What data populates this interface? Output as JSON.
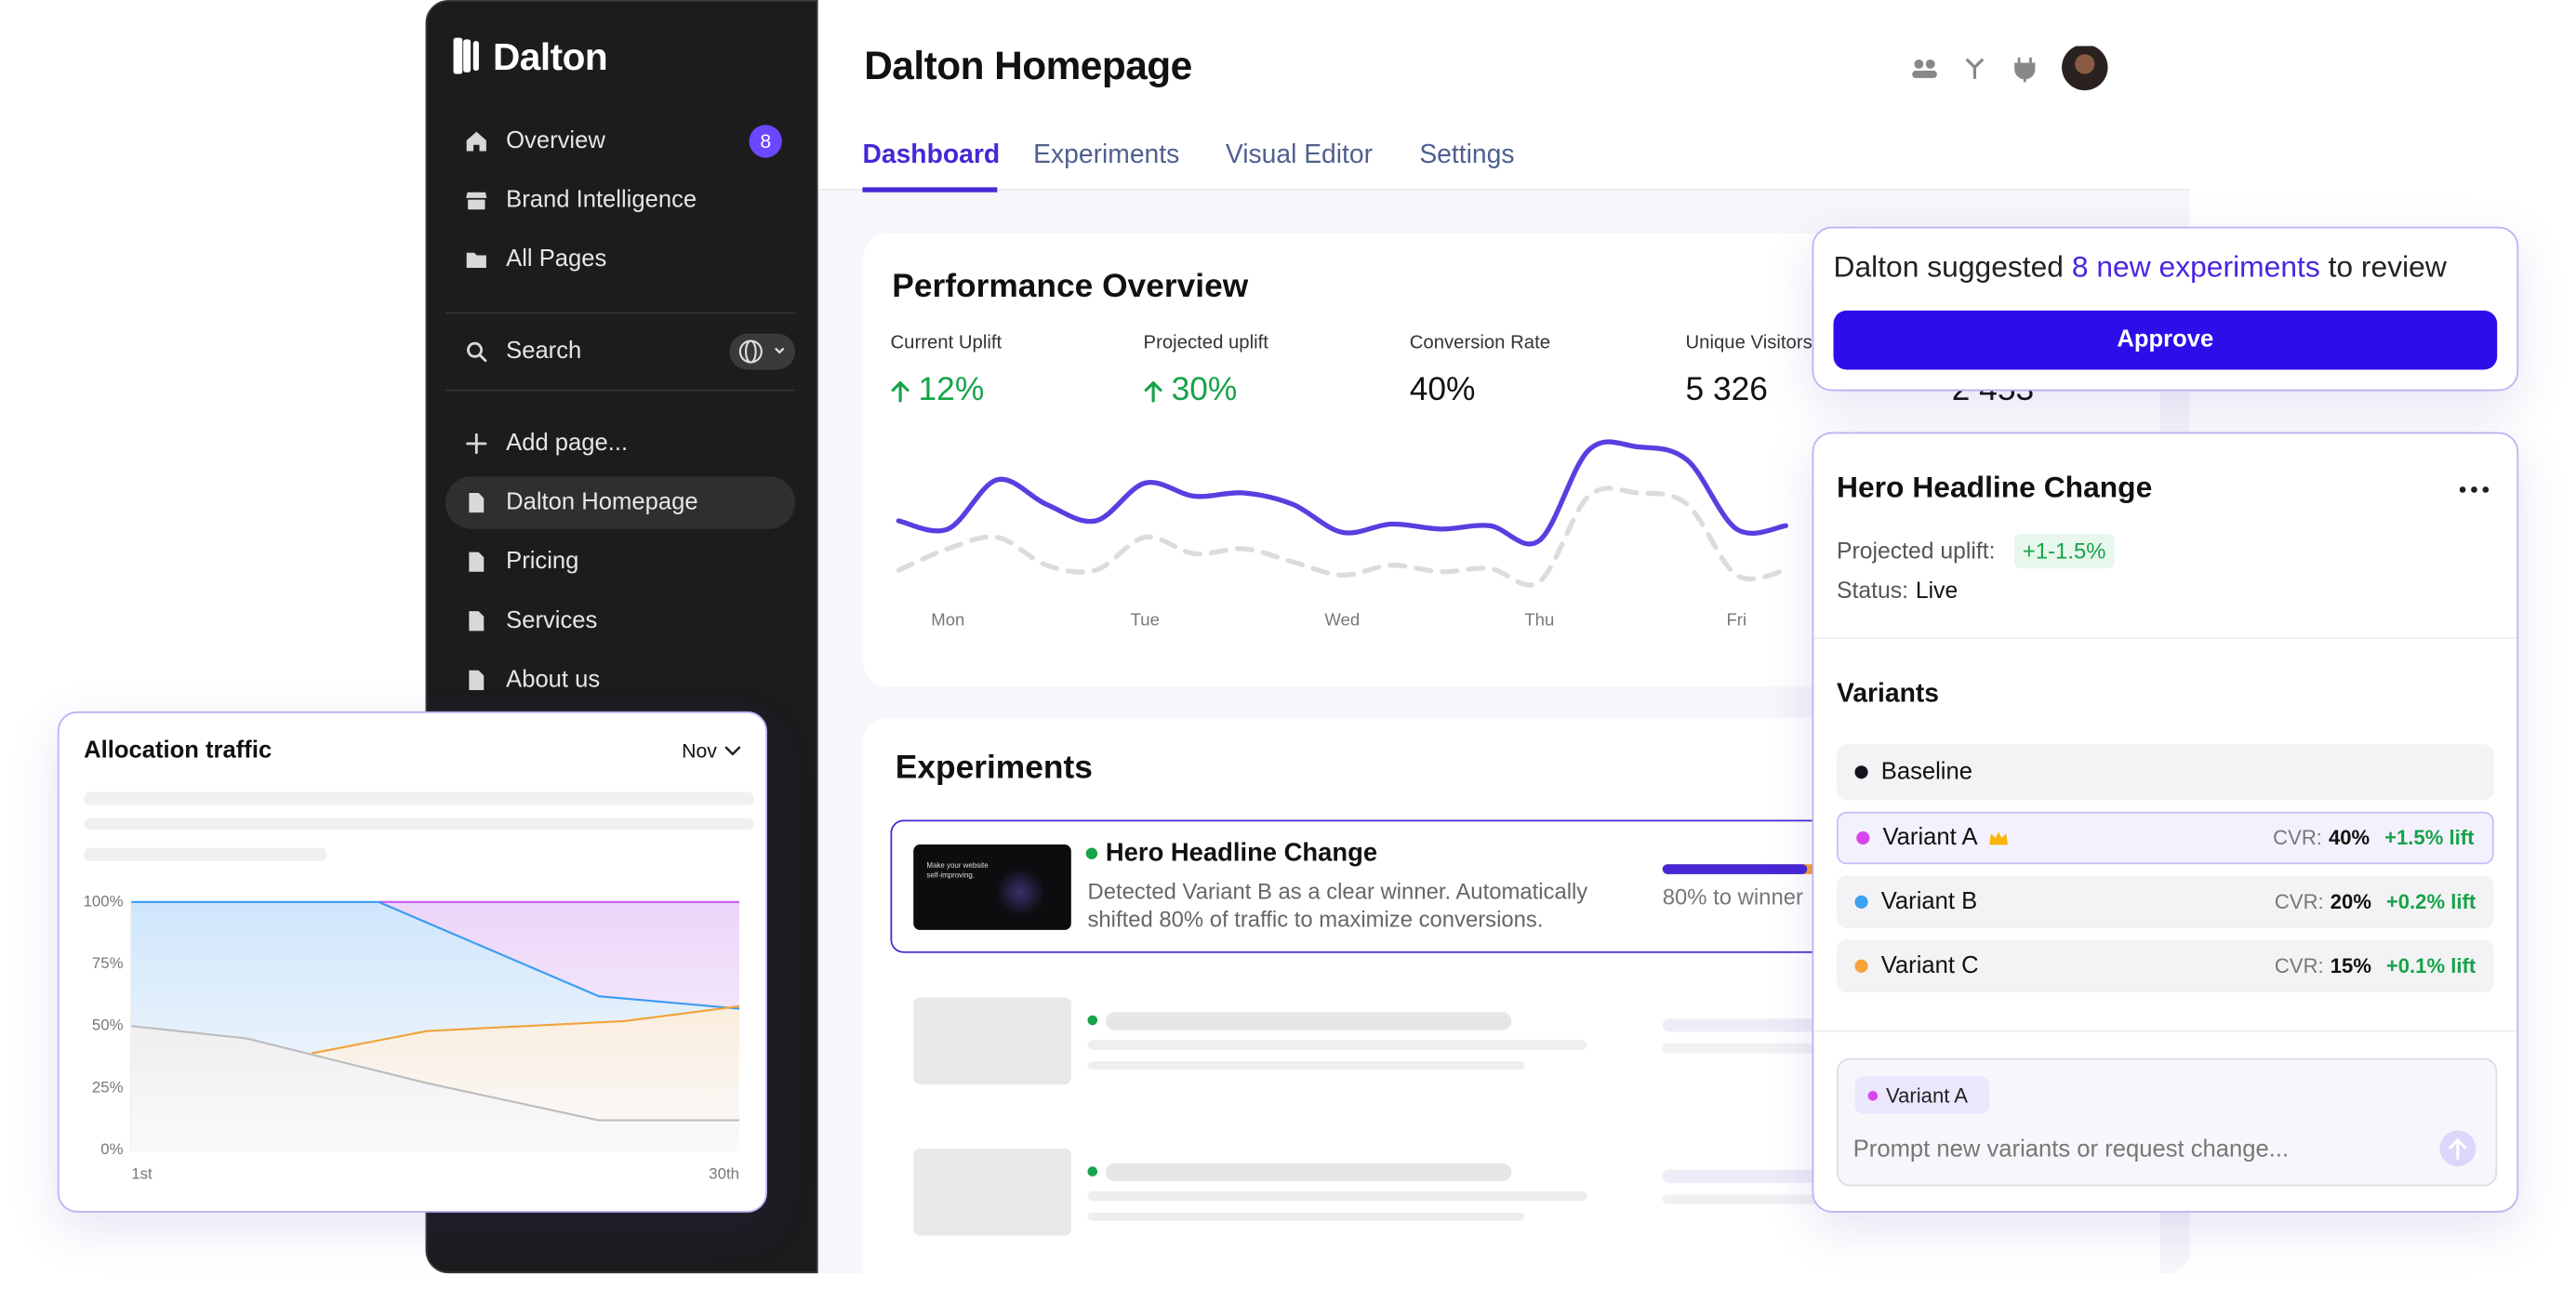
{
  "sidebar": {
    "brand": "Dalton",
    "nav": [
      {
        "label": "Overview",
        "badge": 8
      },
      {
        "label": "Brand Intelligence"
      },
      {
        "label": "All Pages"
      }
    ],
    "search": "Search",
    "pages": [
      "Add page...",
      "Dalton Homepage",
      "Pricing",
      "Services",
      "About us"
    ],
    "active_page": 1
  },
  "header": {
    "title": "Dalton Homepage",
    "tabs": [
      "Dashboard",
      "Experiments",
      "Visual Editor",
      "Settings"
    ],
    "active_tab": 0
  },
  "performance": {
    "title": "Performance Overview",
    "metrics": [
      {
        "label": "Current Uplift",
        "value": "12%",
        "trend": "up"
      },
      {
        "label": "Projected uplift",
        "value": "30%",
        "trend": "up"
      },
      {
        "label": "Conversion Rate",
        "value": "40%"
      },
      {
        "label": "Unique Visitors",
        "value": "5 326"
      },
      {
        "value": "2 453"
      }
    ],
    "chart": {
      "type": "line",
      "categories": [
        null,
        "Mon",
        null,
        null,
        null,
        "Tue",
        null,
        null,
        null,
        "Wed",
        null,
        null,
        null,
        "Thu",
        null,
        null,
        null,
        "Fri",
        null
      ],
      "series": [
        {
          "color": "#5b3de0",
          "values": [
            45,
            40,
            70,
            55,
            45,
            68,
            60,
            62,
            55,
            38,
            43,
            40,
            42,
            33,
            88,
            90,
            82,
            40,
            42
          ]
        },
        {
          "color": "#dcdcdc",
          "style": "dashed",
          "values": [
            15,
            28,
            35,
            18,
            15,
            35,
            25,
            28,
            20,
            12,
            18,
            14,
            16,
            8,
            60,
            62,
            55,
            12,
            15
          ]
        }
      ]
    }
  },
  "experiments": {
    "title": "Experiments",
    "items": [
      {
        "title": "Hero Headline Change",
        "description": "Detected Variant B as a clear winner. Automatically shifted 80% of traffic to maximize conversions.",
        "thumbnail_text": "Make your website self-improving.",
        "progress": 80,
        "progress_label": "80% to winner",
        "status_color": "#16a34a"
      }
    ]
  },
  "suggestion": {
    "text_before": "Dalton suggested",
    "highlight": "8 new experiments",
    "text_after": "to review",
    "button": "Approve"
  },
  "detail": {
    "title": "Hero Headline Change",
    "uplift_label": "Projected uplift:",
    "uplift": "+1-1.5%",
    "status_label": "Status:",
    "status": "Live",
    "variants_title": "Variants",
    "variants": [
      {
        "name": "Baseline",
        "color": "#15151f"
      },
      {
        "name": "Variant A",
        "color": "#d946ef",
        "cvr_label": "CVR:",
        "cvr": "40%",
        "lift": "+1.5% lift",
        "winner": true
      },
      {
        "name": "Variant B",
        "color": "#3ea0f0",
        "cvr_label": "CVR:",
        "cvr": "20%",
        "lift": "+0.2% lift"
      },
      {
        "name": "Variant C",
        "color": "#f5a43a",
        "cvr_label": "CVR:",
        "cvr": "15%",
        "lift": "+0.1% lift"
      }
    ],
    "prompt_chip": "Variant A",
    "prompt_placeholder": "Prompt new variants or request change..."
  },
  "allocation": {
    "title": "Allocation traffic",
    "period": "Nov",
    "chart": {
      "type": "area",
      "xlim": [
        1,
        30
      ],
      "ylim": [
        0,
        100
      ],
      "xticks": [
        {
          "value": 1,
          "label": "1st"
        },
        {
          "value": 30,
          "label": "30th"
        }
      ],
      "yticks": [
        {
          "value": 0,
          "label": "0%"
        },
        {
          "value": 25,
          "label": "25%"
        },
        {
          "value": 50,
          "label": "50%"
        },
        {
          "value": 75,
          "label": "75%"
        },
        {
          "value": 100,
          "label": "100%"
        }
      ],
      "series": [
        {
          "color": "#c75cf0",
          "fill": "#ecd5fa",
          "x": [
            12.8,
            30
          ],
          "values": [
            100,
            100
          ]
        },
        {
          "color": "#3b9cf0",
          "fill": "#cfe6fb",
          "x": [
            1,
            12.8,
            23.3,
            30
          ],
          "values": [
            100,
            100,
            62,
            57
          ]
        },
        {
          "color": "#f0a33a",
          "fill": "#fbe4c8",
          "x": [
            9.6,
            15.1,
            24.5,
            30
          ],
          "values": [
            39,
            48,
            52,
            58
          ]
        },
        {
          "color": "#bdbdbd",
          "fill": "#e4e4e6",
          "x": [
            1,
            6.5,
            15.1,
            23.3,
            30
          ],
          "values": [
            50,
            45,
            27,
            12,
            12
          ]
        }
      ]
    }
  }
}
